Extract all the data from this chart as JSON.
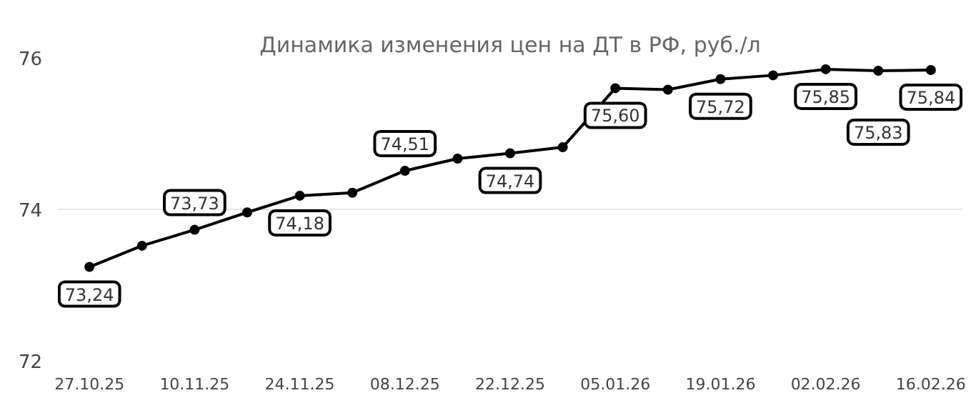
{
  "chart_data": {
    "type": "line",
    "title": "Динамика изменения цен на ДТ в РФ, руб./л",
    "categories": [
      "27.10.25",
      null,
      "10.11.25",
      null,
      "24.11.25",
      null,
      "08.12.25",
      null,
      "22.12.25",
      null,
      "05.01.26",
      null,
      "19.01.26",
      null,
      "02.02.26",
      null,
      "16.02.26"
    ],
    "series": [
      {
        "color": "#000000",
        "values": [
          73.24,
          73.52,
          73.73,
          73.96,
          74.18,
          74.22,
          74.51,
          74.67,
          74.74,
          74.82,
          75.6,
          75.58,
          75.72,
          75.77,
          75.85,
          75.83,
          75.84
        ],
        "value_labels": [
          "73,24",
          null,
          "73,73",
          null,
          "74,18",
          null,
          "74,51",
          null,
          "74,74",
          null,
          "75,60",
          null,
          "75,72",
          null,
          "75,85",
          "75,83",
          "75,84"
        ]
      }
    ],
    "ylim": [
      72,
      76
    ],
    "yticks": [
      72,
      74,
      76
    ],
    "grid": "y",
    "marker": "circle",
    "line_style": "solid"
  }
}
